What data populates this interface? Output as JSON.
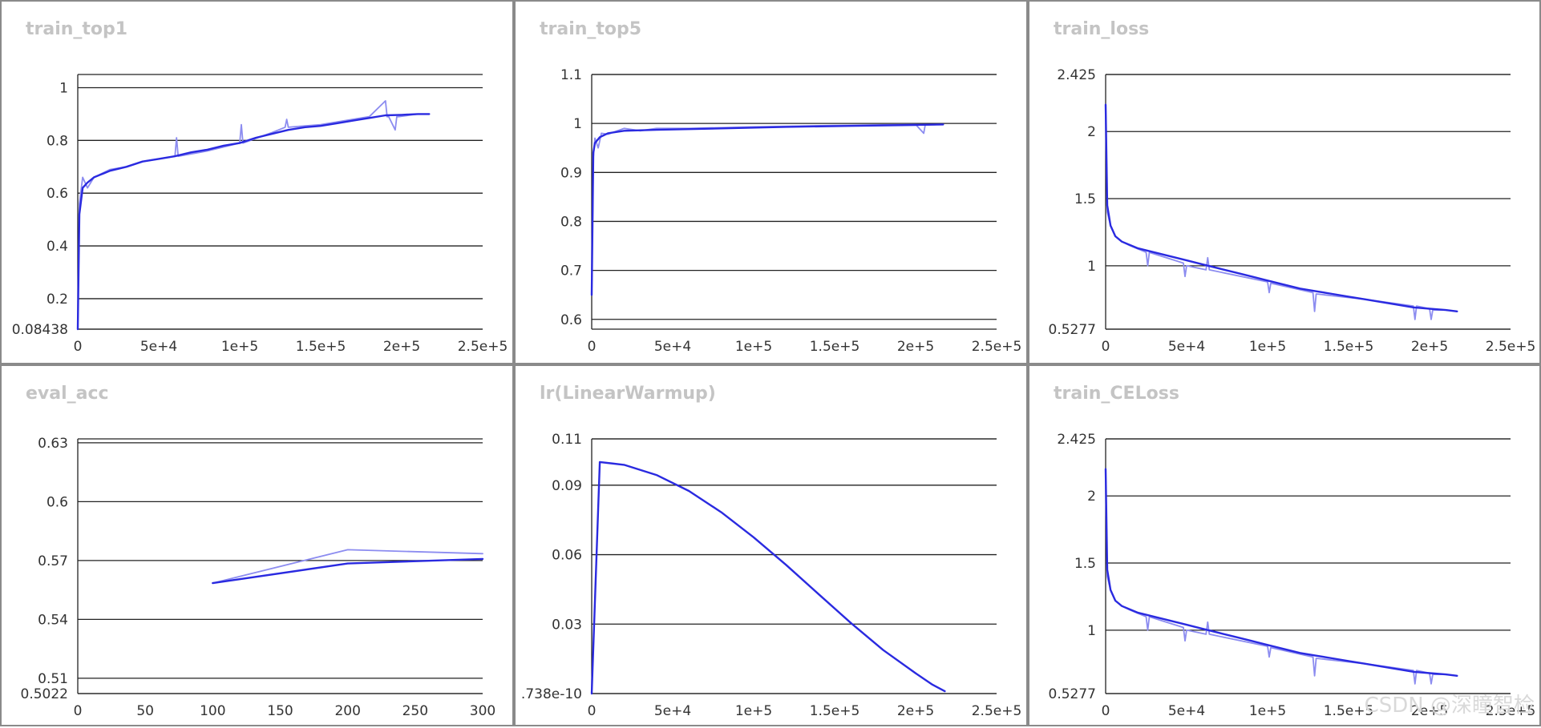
{
  "watermark": "CSDN @深瞳智检",
  "colors": {
    "line": "#2a2ae0",
    "raw": "#8c8cf0",
    "grid": "#222222",
    "title": "#c4c4c4",
    "border": "#8a8a8a"
  },
  "chart_data": [
    {
      "type": "line",
      "title": "train_top1",
      "xlim": [
        0,
        250000
      ],
      "ylim": [
        0.08438,
        1.05
      ],
      "xticks": [
        0,
        50000,
        100000,
        150000,
        200000,
        250000
      ],
      "xtick_labels": [
        "0",
        "5e+4",
        "1e+5",
        "1.5e+5",
        "2e+5",
        "2.5e+5"
      ],
      "yticks": [
        0.08438,
        0.2,
        0.4,
        0.6,
        0.8,
        1
      ],
      "ytick_labels": [
        "0.08438",
        "0.2",
        "0.4",
        "0.6",
        "0.8",
        "1"
      ],
      "grid": true,
      "series": [
        {
          "style": "raw",
          "x": [
            0,
            1000,
            3000,
            6000,
            10000,
            20000,
            30000,
            40000,
            60000,
            61000,
            62000,
            80000,
            100000,
            101000,
            102000,
            120000,
            128000,
            129000,
            130000,
            150000,
            160000,
            180000,
            190000,
            191000,
            192000,
            196000,
            197000,
            198000,
            210000,
            217000
          ],
          "y": [
            0.08438,
            0.56,
            0.66,
            0.62,
            0.66,
            0.69,
            0.7,
            0.72,
            0.74,
            0.81,
            0.74,
            0.76,
            0.79,
            0.86,
            0.79,
            0.83,
            0.85,
            0.88,
            0.85,
            0.86,
            0.87,
            0.89,
            0.95,
            0.89,
            0.89,
            0.84,
            0.89,
            0.89,
            0.9,
            0.9
          ]
        },
        {
          "style": "smooth",
          "x": [
            0,
            1000,
            3000,
            6000,
            10000,
            20000,
            30000,
            40000,
            50000,
            60000,
            70000,
            80000,
            90000,
            100000,
            110000,
            120000,
            130000,
            140000,
            150000,
            160000,
            170000,
            180000,
            190000,
            200000,
            210000,
            217000
          ],
          "y": [
            0.08438,
            0.52,
            0.62,
            0.64,
            0.66,
            0.685,
            0.7,
            0.72,
            0.73,
            0.74,
            0.755,
            0.765,
            0.78,
            0.79,
            0.81,
            0.825,
            0.84,
            0.85,
            0.855,
            0.865,
            0.875,
            0.885,
            0.895,
            0.897,
            0.9,
            0.9
          ]
        }
      ]
    },
    {
      "type": "line",
      "title": "train_top5",
      "xlim": [
        0,
        250000
      ],
      "ylim": [
        0.58,
        1.1
      ],
      "xticks": [
        0,
        50000,
        100000,
        150000,
        200000,
        250000
      ],
      "xtick_labels": [
        "0",
        "5e+4",
        "1e+5",
        "1.5e+5",
        "2e+5",
        "2.5e+5"
      ],
      "yticks": [
        0.6,
        0.7,
        0.8,
        0.9,
        1,
        1.1
      ],
      "ytick_labels": [
        "0.6",
        "0.7",
        "0.8",
        "0.9",
        "1",
        "1.1"
      ],
      "grid": true,
      "series": [
        {
          "style": "raw",
          "x": [
            0,
            1000,
            2000,
            4000,
            6000,
            10000,
            20000,
            30000,
            40000,
            60000,
            100000,
            150000,
            200000,
            205000,
            206000,
            207000,
            217000
          ],
          "y": [
            0.65,
            0.93,
            0.97,
            0.95,
            0.98,
            0.978,
            0.99,
            0.985,
            0.99,
            0.99,
            0.993,
            0.996,
            0.998,
            0.98,
            0.998,
            0.997,
            0.998
          ]
        },
        {
          "style": "smooth",
          "x": [
            0,
            1000,
            2000,
            5000,
            10000,
            20000,
            40000,
            80000,
            120000,
            160000,
            200000,
            217000
          ],
          "y": [
            0.65,
            0.94,
            0.96,
            0.972,
            0.98,
            0.985,
            0.987,
            0.99,
            0.993,
            0.995,
            0.997,
            0.998
          ]
        }
      ]
    },
    {
      "type": "line",
      "title": "train_loss",
      "xlim": [
        0,
        250000
      ],
      "ylim": [
        0.5277,
        2.425
      ],
      "xticks": [
        0,
        50000,
        100000,
        150000,
        200000,
        250000
      ],
      "xtick_labels": [
        "0",
        "5e+4",
        "1e+5",
        "1.5e+5",
        "2e+5",
        "2.5e+5"
      ],
      "yticks": [
        0.5277,
        1,
        1.5,
        2,
        2.425
      ],
      "ytick_labels": [
        "0.5277",
        "1",
        "1.5",
        "2",
        "2.425"
      ],
      "grid": true,
      "series": [
        {
          "style": "raw",
          "x": [
            0,
            1000,
            3000,
            6000,
            10000,
            15000,
            25000,
            26000,
            27000,
            48000,
            49000,
            50000,
            62000,
            63000,
            64000,
            100000,
            101000,
            102000,
            128000,
            129000,
            130000,
            160000,
            190000,
            191000,
            192000,
            200000,
            201000,
            202000,
            210000,
            217000
          ],
          "y": [
            2.2,
            1.4,
            1.3,
            1.22,
            1.18,
            1.15,
            1.1,
            1.0,
            1.1,
            1.02,
            0.92,
            1.0,
            0.97,
            1.06,
            0.97,
            0.88,
            0.8,
            0.87,
            0.8,
            0.66,
            0.79,
            0.75,
            0.7,
            0.6,
            0.7,
            0.68,
            0.6,
            0.67,
            0.67,
            0.66
          ]
        },
        {
          "style": "smooth",
          "x": [
            0,
            1000,
            3000,
            6000,
            10000,
            20000,
            30000,
            40000,
            50000,
            60000,
            70000,
            80000,
            90000,
            100000,
            110000,
            120000,
            130000,
            140000,
            150000,
            160000,
            170000,
            180000,
            190000,
            200000,
            210000,
            217000
          ],
          "y": [
            2.2,
            1.45,
            1.3,
            1.22,
            1.18,
            1.13,
            1.1,
            1.07,
            1.04,
            1.01,
            0.98,
            0.95,
            0.92,
            0.89,
            0.86,
            0.83,
            0.81,
            0.79,
            0.77,
            0.75,
            0.73,
            0.71,
            0.69,
            0.68,
            0.67,
            0.66
          ]
        }
      ]
    },
    {
      "type": "line",
      "title": "eval_acc",
      "xlim": [
        0,
        300
      ],
      "ylim": [
        0.5022,
        0.632
      ],
      "xticks": [
        0,
        50,
        100,
        150,
        200,
        250,
        300
      ],
      "xtick_labels": [
        "0",
        "50",
        "100",
        "150",
        "200",
        "250",
        "300"
      ],
      "yticks": [
        0.5022,
        0.51,
        0.54,
        0.57,
        0.6,
        0.63
      ],
      "ytick_labels": [
        "0.5022",
        "0.51",
        "0.54",
        "0.57",
        "0.6",
        "0.63"
      ],
      "grid": true,
      "series": [
        {
          "style": "raw",
          "x": [
            100,
            200,
            300
          ],
          "y": [
            0.5585,
            0.5755,
            0.5735
          ]
        },
        {
          "style": "smooth",
          "x": [
            100,
            200,
            300
          ],
          "y": [
            0.5585,
            0.5685,
            0.5708
          ]
        }
      ]
    },
    {
      "type": "line",
      "title": "lr(LinearWarmup)",
      "xlim": [
        0,
        250000
      ],
      "ylim": [
        0,
        0.11
      ],
      "xticks": [
        0,
        50000,
        100000,
        150000,
        200000,
        250000
      ],
      "xtick_labels": [
        "0",
        "5e+4",
        "1e+5",
        "1.5e+5",
        "2e+5",
        "2.5e+5"
      ],
      "yticks": [
        0,
        0.03,
        0.06,
        0.09,
        0.11
      ],
      "ytick_labels": [
        ".738e-10",
        "0.03",
        "0.06",
        "0.09",
        "0.11"
      ],
      "grid": true,
      "series": [
        {
          "style": "smooth",
          "x": [
            0,
            5000,
            20000,
            40000,
            60000,
            80000,
            100000,
            120000,
            140000,
            160000,
            180000,
            200000,
            210000,
            218000
          ],
          "y": [
            0,
            0.1,
            0.0988,
            0.0944,
            0.0875,
            0.0783,
            0.0675,
            0.0556,
            0.043,
            0.0305,
            0.0188,
            0.0088,
            0.004,
            0.001
          ]
        }
      ]
    },
    {
      "type": "line",
      "title": "train_CELoss",
      "xlim": [
        0,
        250000
      ],
      "ylim": [
        0.5277,
        2.425
      ],
      "xticks": [
        0,
        50000,
        100000,
        150000,
        200000,
        250000
      ],
      "xtick_labels": [
        "0",
        "5e+4",
        "1e+5",
        "1.5e+5",
        "2e+5",
        "2.5e+5"
      ],
      "yticks": [
        0.5277,
        1,
        1.5,
        2,
        2.425
      ],
      "ytick_labels": [
        "0.5277",
        "1",
        "1.5",
        "2",
        "2.425"
      ],
      "grid": true,
      "series": [
        {
          "style": "raw",
          "x": [
            0,
            1000,
            3000,
            6000,
            10000,
            15000,
            25000,
            26000,
            27000,
            48000,
            49000,
            50000,
            62000,
            63000,
            64000,
            100000,
            101000,
            102000,
            128000,
            129000,
            130000,
            160000,
            190000,
            191000,
            192000,
            200000,
            201000,
            202000,
            210000,
            217000
          ],
          "y": [
            2.2,
            1.4,
            1.3,
            1.22,
            1.18,
            1.15,
            1.1,
            1.0,
            1.1,
            1.02,
            0.92,
            1.0,
            0.97,
            1.06,
            0.97,
            0.88,
            0.8,
            0.87,
            0.8,
            0.66,
            0.79,
            0.75,
            0.7,
            0.6,
            0.7,
            0.68,
            0.6,
            0.67,
            0.67,
            0.66
          ]
        },
        {
          "style": "smooth",
          "x": [
            0,
            1000,
            3000,
            6000,
            10000,
            20000,
            30000,
            40000,
            50000,
            60000,
            70000,
            80000,
            90000,
            100000,
            110000,
            120000,
            130000,
            140000,
            150000,
            160000,
            170000,
            180000,
            190000,
            200000,
            210000,
            217000
          ],
          "y": [
            2.2,
            1.45,
            1.3,
            1.22,
            1.18,
            1.13,
            1.1,
            1.07,
            1.04,
            1.01,
            0.98,
            0.95,
            0.92,
            0.89,
            0.86,
            0.83,
            0.81,
            0.79,
            0.77,
            0.75,
            0.73,
            0.71,
            0.69,
            0.68,
            0.67,
            0.66
          ]
        }
      ]
    }
  ]
}
